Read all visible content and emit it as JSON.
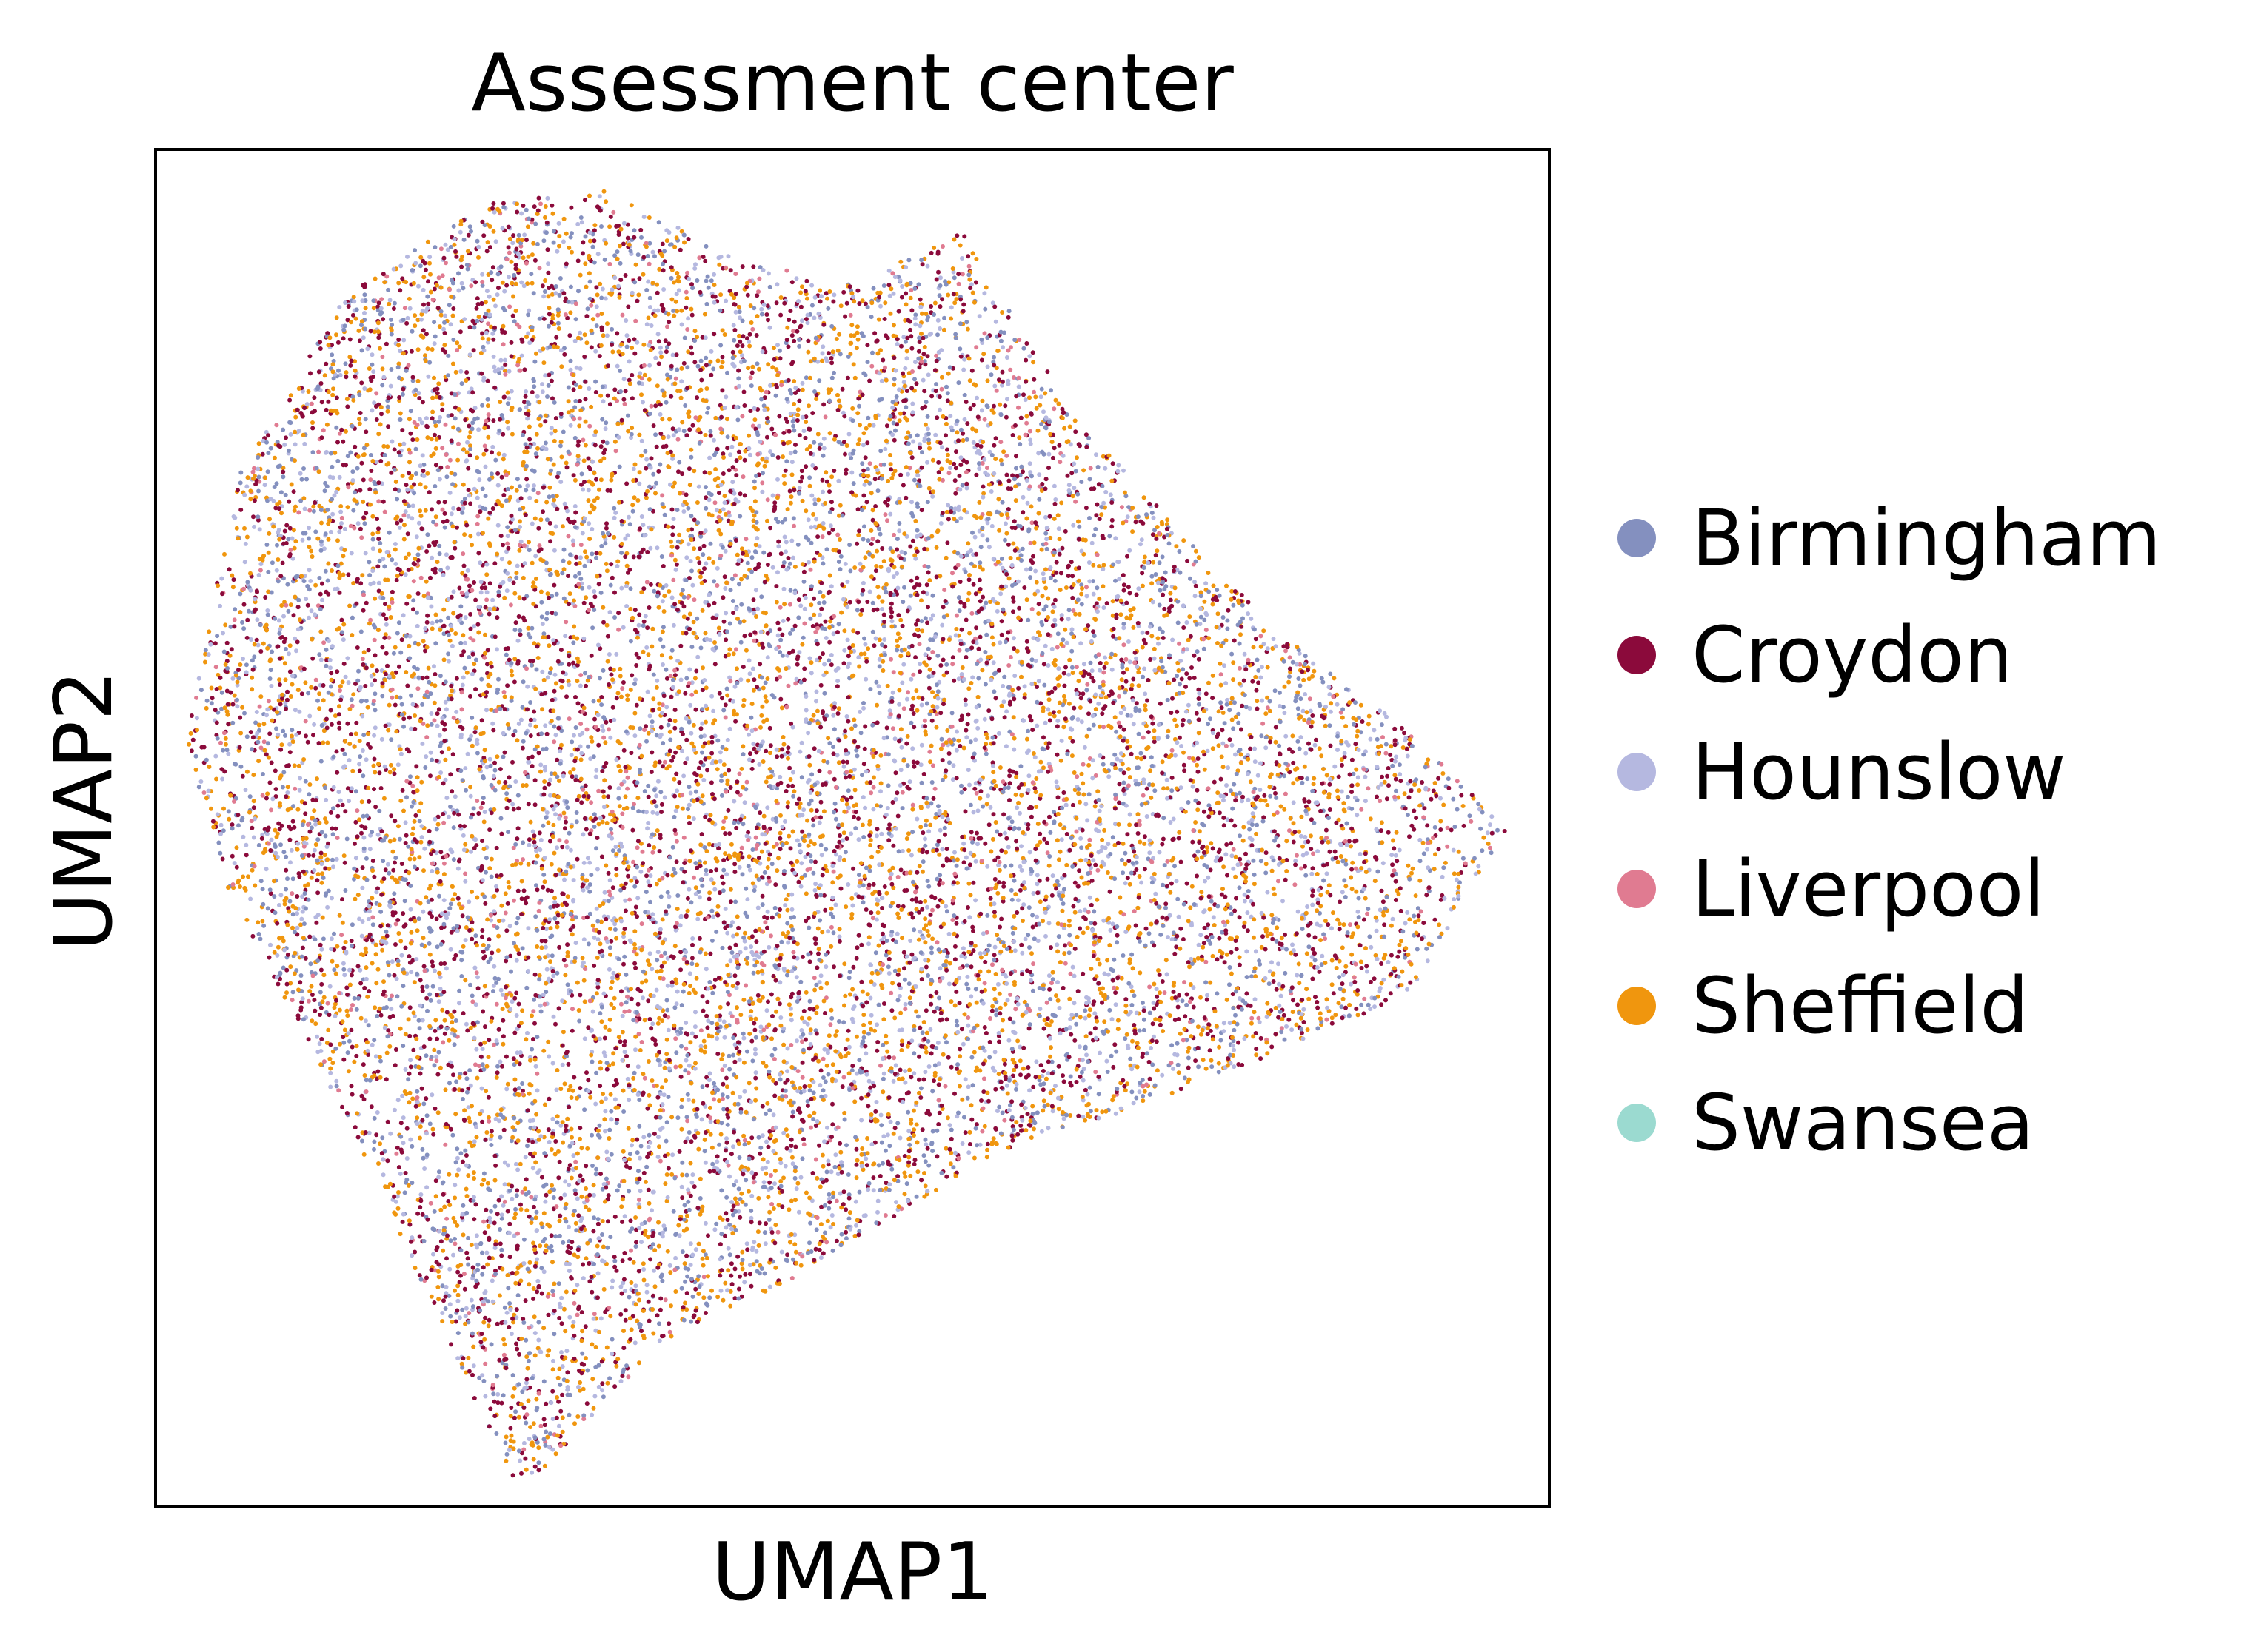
{
  "chart_data": {
    "type": "scatter",
    "title": "Assessment center",
    "xlabel": "UMAP1",
    "ylabel": "UMAP2",
    "xticks": [],
    "yticks": [],
    "grid": false,
    "legend_position": "right",
    "categories": [
      "Birmingham",
      "Croydon",
      "Hounslow",
      "Liverpool",
      "Sheffield",
      "Swansea"
    ],
    "colors": {
      "Birmingham": "#8490bf",
      "Croydon": "#8b0a3b",
      "Hounslow": "#b5b8e0",
      "Liverpool": "#e07b91",
      "Sheffield": "#f0960e",
      "Swansea": "#9bdad0"
    },
    "points_per_category_approx": {
      "Birmingham": 3000,
      "Croydon": 4200,
      "Hounslow": 3000,
      "Liverpool": 900,
      "Sheffield": 4200,
      "Swansea": 0
    },
    "cloud_outline_umap": [
      [
        0.26,
        0.99
      ],
      [
        0.22,
        0.9
      ],
      [
        0.14,
        0.72
      ],
      [
        0.05,
        0.54
      ],
      [
        0.02,
        0.44
      ],
      [
        0.06,
        0.24
      ],
      [
        0.14,
        0.1
      ],
      [
        0.24,
        0.04
      ],
      [
        0.32,
        0.03
      ],
      [
        0.42,
        0.08
      ],
      [
        0.5,
        0.1
      ],
      [
        0.58,
        0.06
      ],
      [
        0.62,
        0.13
      ],
      [
        0.67,
        0.21
      ],
      [
        0.8,
        0.35
      ],
      [
        0.89,
        0.42
      ],
      [
        0.97,
        0.5
      ],
      [
        0.9,
        0.62
      ],
      [
        0.84,
        0.65
      ],
      [
        0.72,
        0.7
      ],
      [
        0.6,
        0.74
      ],
      [
        0.54,
        0.78
      ],
      [
        0.46,
        0.83
      ],
      [
        0.36,
        0.88
      ],
      [
        0.3,
        0.95
      ]
    ]
  }
}
